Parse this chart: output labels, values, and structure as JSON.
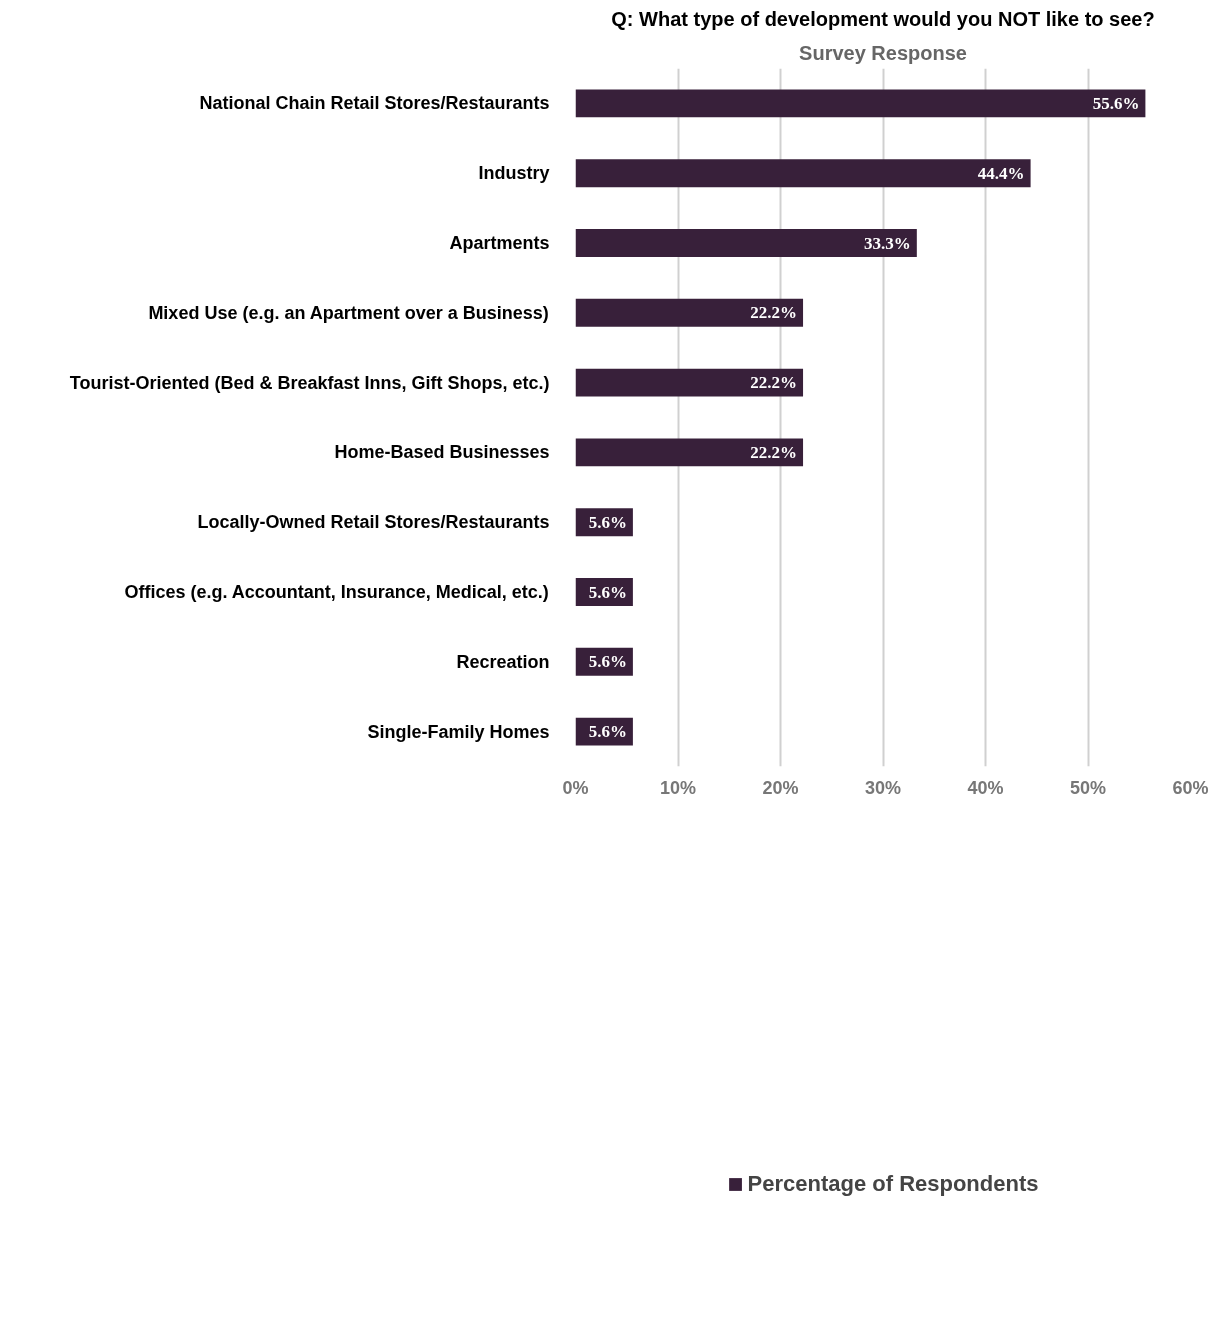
{
  "chart_data": {
    "type": "bar",
    "orientation": "horizontal",
    "title": "Q: What type of development would you NOT like to see?",
    "subtitle": "Survey Response",
    "categories": [
      "National Chain Retail Stores/Restaurants",
      "Industry",
      "Apartments",
      "Mixed Use (e.g. an Apartment over a Business)",
      "Tourist-Oriented (Bed & Breakfast Inns, Gift Shops, etc.)",
      "Home-Based Businesses",
      "Locally-Owned Retail Stores/Restaurants",
      "Offices (e.g. Accountant, Insurance, Medical, etc.)",
      "Recreation",
      "Single-Family Homes"
    ],
    "series": [
      {
        "name": "Percentage of Respondents",
        "color": "#38203a",
        "values": [
          55.6,
          44.4,
          33.3,
          22.2,
          22.2,
          22.2,
          5.6,
          5.6,
          5.6,
          5.6
        ],
        "value_labels": [
          "55.6%",
          "44.4%",
          "33.3%",
          "22.2%",
          "22.2%",
          "22.2%",
          "5.6%",
          "5.6%",
          "5.6%",
          "5.6%"
        ]
      }
    ],
    "xlim": [
      0,
      60
    ],
    "xticks": [
      {
        "value": 0,
        "label": "0%"
      },
      {
        "value": 10,
        "label": "10%"
      },
      {
        "value": 20,
        "label": "20%"
      },
      {
        "value": 30,
        "label": "30%"
      },
      {
        "value": 40,
        "label": "40%"
      },
      {
        "value": 50,
        "label": "50%"
      },
      {
        "value": 60,
        "label": "60%"
      }
    ],
    "grid": "x",
    "legend": "bottom"
  }
}
